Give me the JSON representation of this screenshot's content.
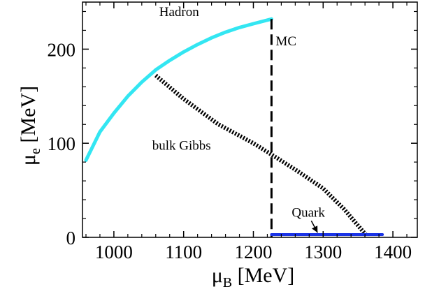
{
  "chart_data": {
    "type": "line",
    "xlabel": {
      "symbol": "μ",
      "sub": "B",
      "unit": " [MeV]"
    },
    "ylabel": {
      "symbol": "μ",
      "sub": "e",
      "unit": " [MeV]"
    },
    "xlim": [
      955,
      1435
    ],
    "ylim": [
      0,
      250
    ],
    "xticks": [
      1000,
      1100,
      1200,
      1300,
      1400
    ],
    "yticks": [
      0,
      100,
      200
    ],
    "grid": false,
    "legend": "none",
    "series": [
      {
        "name": "Hadron",
        "style": "solid",
        "color": "#33e6f2",
        "x": [
          960,
          980,
          1000,
          1020,
          1040,
          1060,
          1080,
          1100,
          1120,
          1140,
          1160,
          1180,
          1200,
          1226
        ],
        "y": [
          82,
          112,
          132,
          150,
          165,
          178,
          188,
          197,
          205,
          212,
          218,
          223,
          227,
          232
        ]
      },
      {
        "name": "bulk Gibbs",
        "style": "dotted",
        "color": "#000000",
        "x": [
          1060,
          1100,
          1150,
          1200,
          1226,
          1260,
          1300,
          1330,
          1362
        ],
        "y": [
          172,
          147,
          120,
          100,
          88,
          72,
          52,
          30,
          2
        ]
      },
      {
        "name": "MC",
        "style": "dashed",
        "color": "#000000",
        "x": [
          1226,
          1226
        ],
        "y": [
          232,
          0
        ]
      },
      {
        "name": "Quark",
        "style": "solid",
        "color": "#1a33e6",
        "x": [
          1226,
          1385
        ],
        "y": [
          3,
          3
        ]
      }
    ],
    "annotations": [
      {
        "text": "Hadron",
        "x": 1065,
        "y": 235
      },
      {
        "text": "MC",
        "x": 1232,
        "y": 204
      },
      {
        "text": "bulk Gibbs",
        "x": 1055,
        "y": 93
      },
      {
        "text": "Quark",
        "x": 1255,
        "y": 22,
        "arrow_to": [
          1292,
          5
        ]
      }
    ]
  }
}
